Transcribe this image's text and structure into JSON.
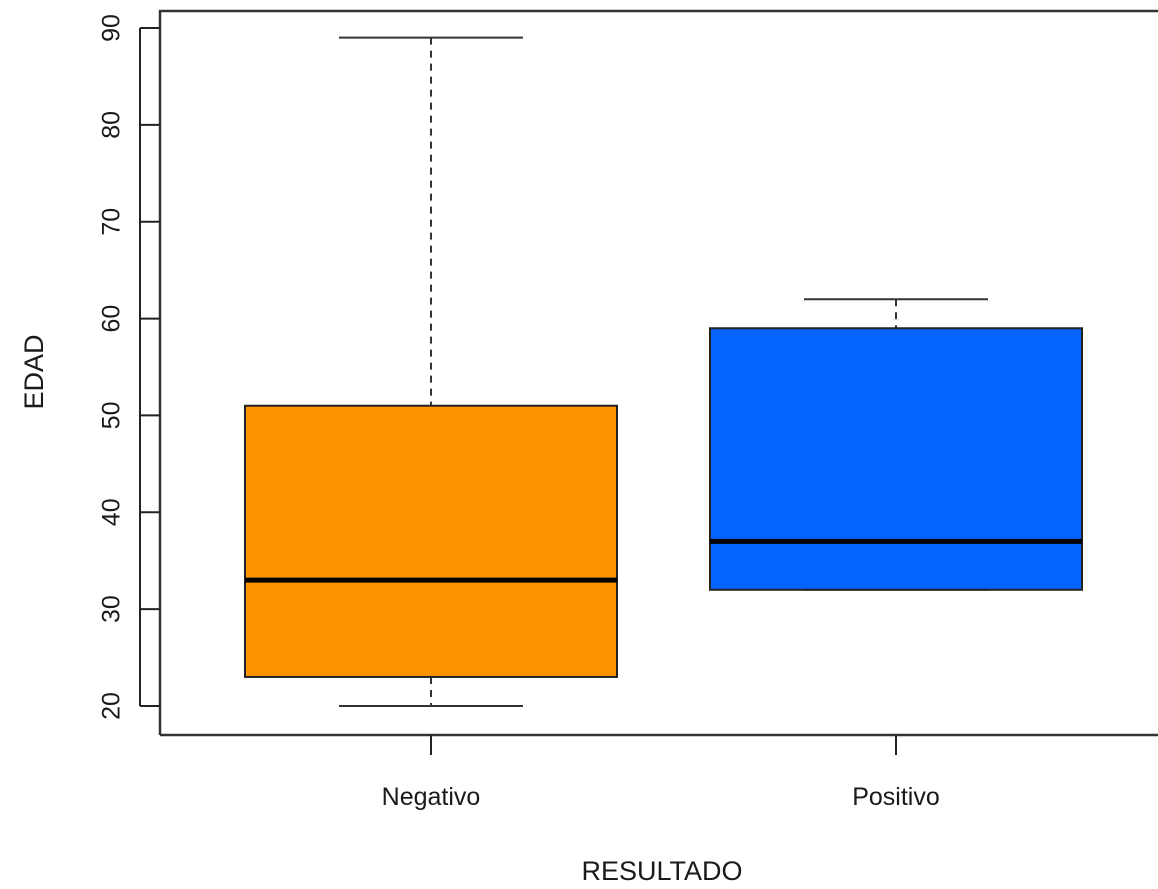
{
  "chart_data": {
    "type": "boxplot",
    "title": "",
    "xlabel": "RESULTADO",
    "ylabel": "EDAD",
    "ylim": [
      17,
      92
    ],
    "yticks": [
      20,
      30,
      40,
      50,
      60,
      70,
      80,
      90
    ],
    "grid": false,
    "legend": "none",
    "categories": [
      "Negativo",
      "Positivo"
    ],
    "series": [
      {
        "category": "Negativo",
        "color": "#FF9400",
        "min": 20,
        "q1": 23,
        "median": 33,
        "q3": 51,
        "max": 89
      },
      {
        "category": "Positivo",
        "color": "#0564FF",
        "min": 32,
        "q1": 32,
        "median": 37,
        "q3": 59,
        "max": 62
      }
    ]
  }
}
